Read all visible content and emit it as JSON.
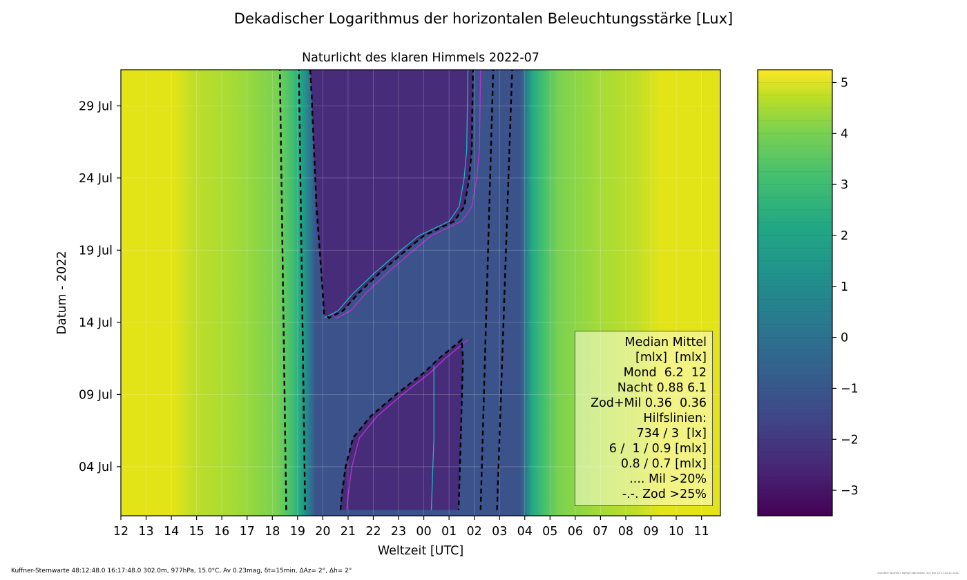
{
  "chart_data": {
    "type": "heatmap",
    "title": "Dekadischer Logarithmus der horizontalen Beleuchtungsstärke [Lux]",
    "subtitle": "Naturlicht des klaren Himmels 2022-07",
    "xlabel": "Weltzeit [UTC]",
    "ylabel": "Datum - 2022",
    "x_ticks": [
      "12",
      "13",
      "14",
      "15",
      "16",
      "17",
      "18",
      "19",
      "20",
      "21",
      "22",
      "23",
      "00",
      "01",
      "02",
      "03",
      "04",
      "05",
      "06",
      "07",
      "08",
      "09",
      "10",
      "11"
    ],
    "y_ticks": [
      {
        "label": "04 Jul",
        "day": 4
      },
      {
        "label": "09 Jul",
        "day": 9
      },
      {
        "label": "14 Jul",
        "day": 14
      },
      {
        "label": "19 Jul",
        "day": 19
      },
      {
        "label": "24 Jul",
        "day": 24
      },
      {
        "label": "29 Jul",
        "day": 29
      }
    ],
    "x_range_hours_from_12utc": [
      0,
      23.75
    ],
    "y_range_days": [
      0.6,
      31.5
    ],
    "colorbar": {
      "range": [
        -3.5,
        5.25
      ],
      "ticks": [
        "5",
        "4",
        "3",
        "2",
        "1",
        "0",
        "−1",
        "−2",
        "−3"
      ],
      "tick_values": [
        5,
        4,
        3,
        2,
        1,
        0,
        -1,
        -2,
        -3
      ]
    },
    "contours": {
      "twilight_734_lx": {
        "evening_x": [
          [
            1,
            6.55
          ],
          [
            31.5,
            6.3
          ]
        ],
        "morning_x": [
          [
            1,
            14.9
          ],
          [
            31.5,
            15.5
          ]
        ]
      },
      "twilight_3_lx": {
        "evening_x": [
          [
            1,
            7.3
          ],
          [
            31.5,
            7.05
          ]
        ],
        "morning_x": [
          [
            1,
            14.25
          ],
          [
            31.5,
            14.75
          ]
        ]
      },
      "moon_6_mlx": {
        "lower_branch": [
          [
            1,
            8.7
          ],
          [
            2,
            8.75
          ],
          [
            4,
            8.9
          ],
          [
            6,
            9.2
          ],
          [
            7.5,
            9.9
          ],
          [
            9,
            10.9
          ],
          [
            10.5,
            12.0
          ],
          [
            11.5,
            12.6
          ],
          [
            12.5,
            13.3
          ],
          [
            12.8,
            13.5
          ],
          [
            11.5,
            13.55
          ],
          [
            7,
            13.48
          ],
          [
            1,
            13.38
          ]
        ],
        "upper_branch": [
          [
            31.5,
            7.5
          ],
          [
            30,
            7.55
          ],
          [
            22,
            7.75
          ],
          [
            16,
            8.0
          ],
          [
            14.6,
            8.05
          ],
          [
            14.3,
            8.25
          ],
          [
            14.8,
            8.8
          ],
          [
            16,
            9.4
          ],
          [
            17.5,
            10.3
          ],
          [
            19,
            11.3
          ],
          [
            20,
            12.0
          ],
          [
            21,
            13.2
          ],
          [
            22,
            13.6
          ],
          [
            24,
            13.8
          ],
          [
            26,
            13.9
          ],
          [
            31.5,
            13.95
          ]
        ]
      }
    },
    "annotations": [
      "Median Mittel",
      "[mlx]  [mlx]",
      "Mond  6.2  12",
      "Nacht 0.88 6.1",
      "Zod+Mil 0.36  0.36",
      "Hilfslinien:",
      "734 / 3  [lx]",
      "6 /  1 / 0.9 [mlx]",
      "0.8 / 0.7 [mlx]",
      ".... Mil >20%",
      "-.-. Zod >25%"
    ],
    "grid": true,
    "legend_placement": "lower-right"
  },
  "footer": {
    "text": "Kuffner-Sternwarte 48:12:48.0 16:17:48.0 302.0m,  977hPa, 15.0°C, Av 0.23mag, δt=15min, ΔAz=  2°, Δh= 2°",
    "credit": "Guenther Wuchterl, Kuffner-Sternwarte, Sun Dec 12 21:42:21 2021"
  }
}
